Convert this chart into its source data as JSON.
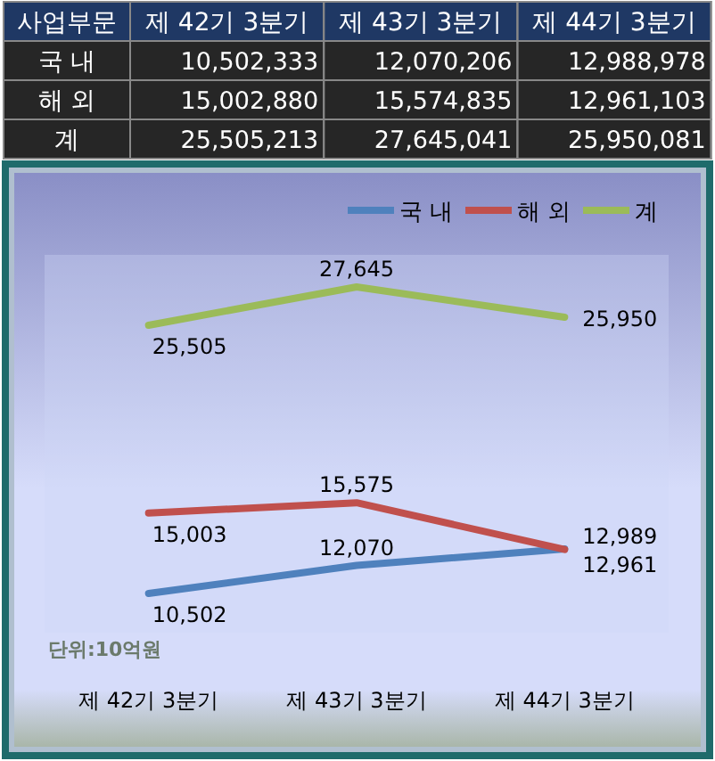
{
  "chart_data": [
    {
      "type": "other",
      "legend_title": "사업부문",
      "categories": [
        "제 42기 3분기",
        "제 43기 3분기",
        "제 44기 3분기"
      ],
      "series": [
        {
          "name": "국 내",
          "color": "#262626",
          "values": [
            10502333,
            12070206,
            12988978
          ],
          "value_labels": [
            "10,502,333",
            "12,070,206",
            "12,988,978"
          ]
        },
        {
          "name": "해 외",
          "color": "#262626",
          "values": [
            15002880,
            15574835,
            12961103
          ],
          "value_labels": [
            "15,002,880",
            "15,574,835",
            "12,961,103"
          ]
        },
        {
          "name": "계",
          "color": "#262626",
          "values": [
            25505213,
            27645041,
            25950081
          ],
          "value_labels": [
            "25,505,213",
            "27,645,041",
            "25,950,081"
          ]
        }
      ]
    },
    {
      "type": "line",
      "categories": [
        "제 42기 3분기",
        "제 43기 3분기",
        "제 44기 3분기"
      ],
      "legend": "top right",
      "annotations": [
        "단위:10억원"
      ],
      "series": [
        {
          "name": "국 내",
          "color": "#4f81bd",
          "values": [
            10502,
            12070,
            12989
          ],
          "value_labels": [
            "10,502",
            "12,070",
            "12,989"
          ]
        },
        {
          "name": "해 외",
          "color": "#c0504d",
          "values": [
            15003,
            15575,
            12961
          ],
          "value_labels": [
            "15,003",
            "15,575",
            "12,961"
          ]
        },
        {
          "name": "계",
          "color": "#9bbb59",
          "values": [
            25505,
            27645,
            25950
          ],
          "value_labels": [
            "25,505",
            "27,645",
            "25,950"
          ]
        }
      ]
    }
  ]
}
